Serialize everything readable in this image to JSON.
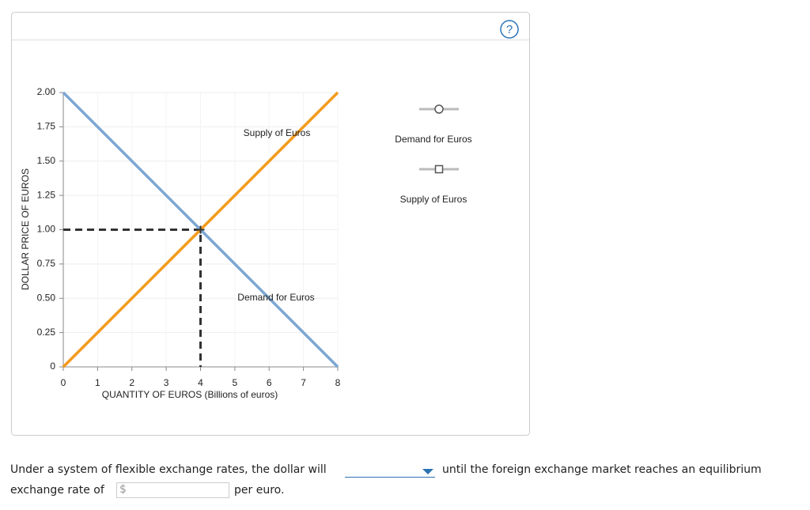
{
  "chart_data": {
    "type": "line",
    "x_label": "QUANTITY OF EUROS (Billions of euros)",
    "y_label": "DOLLAR PRICE OF EUROS",
    "series": [
      {
        "name": "Demand for Euros",
        "color": "#7ba7d4",
        "marker": "circle",
        "x": [
          0,
          8
        ],
        "values": [
          2,
          0
        ]
      },
      {
        "name": "Supply of Euros",
        "color": "#f59a1b",
        "marker": "square",
        "x": [
          0,
          8
        ],
        "values": [
          0,
          2
        ]
      }
    ],
    "annotations": [
      "Supply of Euros",
      "Demand for Euros"
    ],
    "equilibrium": {
      "x": 4,
      "y": 1
    },
    "xlim": [
      0,
      8
    ],
    "ylim": [
      0,
      2
    ],
    "xticks": [
      0,
      1,
      2,
      3,
      4,
      5,
      6,
      7,
      8
    ],
    "yticks": [
      0,
      {
        "value": 0.25,
        "label": "0.25"
      },
      {
        "value": 0.5,
        "label": "0.50"
      },
      {
        "value": 0.75,
        "label": "0.75"
      },
      {
        "value": 1,
        "label": "1.00"
      },
      {
        "value": 1.25,
        "label": "1.25"
      },
      {
        "value": 1.5,
        "label": "1.50"
      },
      {
        "value": 1.75,
        "label": "1.75"
      },
      {
        "value": 2,
        "label": "2.00"
      }
    ],
    "grid": true
  },
  "help_icon": "?",
  "question": {
    "before": "Under a system of flexible exchange rates, the dollar will",
    "after": "until the foreign exchange market reaches an equilibrium",
    "line2": "exchange rate of",
    "currency": "$",
    "unit": "per euro."
  }
}
